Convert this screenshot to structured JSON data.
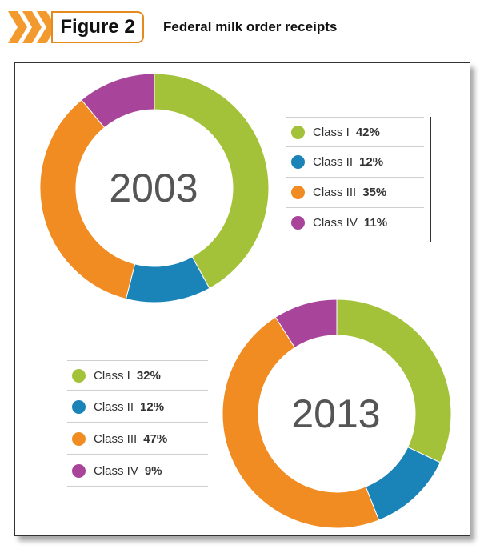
{
  "header": {
    "figure_label": "Figure 2",
    "title": "Federal milk order receipts"
  },
  "colors": {
    "class_i": "#a3c23a",
    "class_ii": "#1a84b8",
    "class_iii": "#f08c22",
    "class_iv": "#a8449a",
    "accent": "#e58a1f"
  },
  "chart_data": [
    {
      "type": "pie",
      "title": "2003",
      "categories": [
        "Class I",
        "Class II",
        "Class III",
        "Class IV"
      ],
      "values": [
        42,
        12,
        35,
        11
      ],
      "labels": [
        "42%",
        "12%",
        "35%",
        "11%"
      ]
    },
    {
      "type": "pie",
      "title": "2013",
      "categories": [
        "Class I",
        "Class II",
        "Class III",
        "Class IV"
      ],
      "values": [
        32,
        12,
        47,
        9
      ],
      "labels": [
        "32%",
        "12%",
        "47%",
        "9%"
      ]
    }
  ]
}
